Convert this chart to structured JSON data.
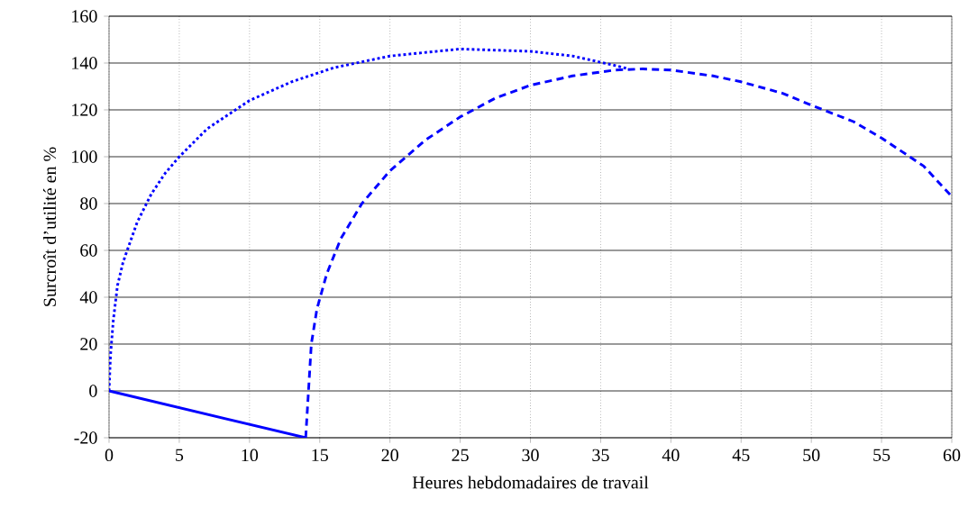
{
  "chart_data": {
    "type": "line",
    "xlabel": "Heures hebdomadaires de travail",
    "ylabel": "Surcroît d’utilité en %",
    "xlim": [
      0,
      60
    ],
    "ylim": [
      -20,
      160
    ],
    "xticks": [
      0,
      5,
      10,
      15,
      20,
      25,
      30,
      35,
      40,
      45,
      50,
      55,
      60
    ],
    "yticks": [
      -20,
      0,
      20,
      40,
      60,
      80,
      100,
      120,
      140,
      160
    ],
    "grid": true,
    "marker": "none",
    "series": [
      {
        "color": "#0000ff",
        "line_style": "solid",
        "x": [
          0,
          14
        ],
        "values": [
          0,
          -20
        ]
      },
      {
        "color": "#0000ff",
        "line_style": "dotted",
        "x": [
          0,
          0.1,
          0.3,
          0.6,
          1,
          2,
          3,
          4,
          5,
          7,
          10,
          13,
          16,
          20,
          25,
          30,
          33,
          36,
          37
        ],
        "values": [
          0,
          15,
          30,
          45,
          55,
          72,
          84,
          93,
          100,
          112,
          124,
          132,
          138,
          143,
          146,
          145,
          143,
          139,
          137.5
        ]
      },
      {
        "color": "#0000ff",
        "line_style": "dashed",
        "x": [
          14,
          14.2,
          14.4,
          14.8,
          15.5,
          16.5,
          18,
          20,
          22.5,
          25,
          27.5,
          30,
          33,
          36,
          38,
          40,
          43,
          45,
          48,
          50,
          53,
          55,
          58,
          60
        ],
        "values": [
          -20,
          0,
          20,
          35,
          50,
          65,
          80,
          94,
          107,
          117,
          125,
          130.5,
          134.5,
          137,
          137.5,
          137,
          134.5,
          132,
          127,
          122,
          115,
          108,
          96,
          83
        ]
      }
    ]
  }
}
